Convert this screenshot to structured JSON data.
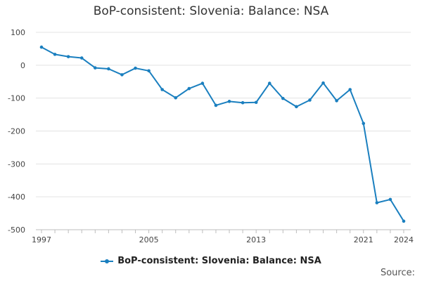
{
  "chart_data": {
    "type": "line",
    "title": "BoP-consistent: Slovenia: Balance: NSA",
    "xlabel": "",
    "ylabel": "",
    "x": [
      1997,
      1998,
      1999,
      2000,
      2001,
      2002,
      2003,
      2004,
      2005,
      2006,
      2007,
      2008,
      2009,
      2010,
      2011,
      2012,
      2013,
      2014,
      2015,
      2016,
      2017,
      2018,
      2019,
      2020,
      2021,
      2022,
      2023,
      2024
    ],
    "series": [
      {
        "name": "BoP-consistent: Slovenia: Balance: NSA",
        "color": "#1a7fbf",
        "values": [
          55,
          33,
          26,
          22,
          -8,
          -11,
          -29,
          -9,
          -17,
          -74,
          -99,
          -71,
          -55,
          -122,
          -110,
          -114,
          -113,
          -55,
          -101,
          -126,
          -106,
          -54,
          -108,
          -74,
          -177,
          -418,
          -408,
          -474
        ]
      }
    ],
    "ylim": [
      -500,
      100
    ],
    "yticks": [
      100,
      0,
      -100,
      -200,
      -300,
      -400,
      -500
    ],
    "xticks": [
      1997,
      2005,
      2013,
      2021,
      2024
    ],
    "grid": true,
    "legend_position": "bottom-center"
  },
  "legend": {
    "label": "BoP-consistent: Slovenia: Balance: NSA"
  },
  "source": {
    "label": "Source:"
  }
}
